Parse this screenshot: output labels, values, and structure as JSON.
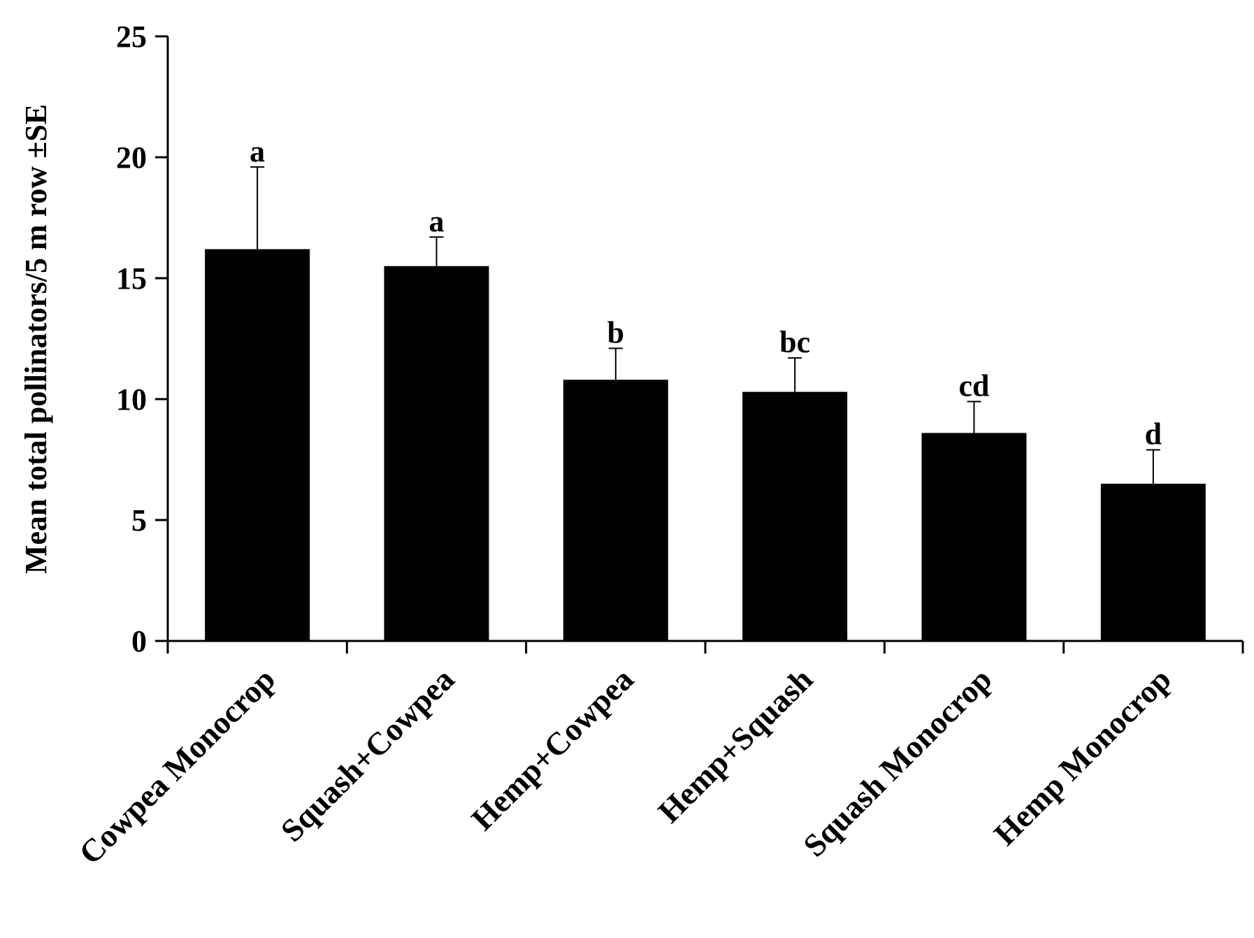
{
  "chart_data": {
    "type": "bar",
    "title": "",
    "xlabel": "",
    "ylabel": "Mean  total pollinators/5 m row ±SE",
    "ylim": [
      0,
      25
    ],
    "yticks": [
      0,
      5,
      10,
      15,
      20,
      25
    ],
    "grid": false,
    "legend": "none",
    "bar_color": "#000000",
    "categories": [
      "Cowpea Monocrop",
      "Squash+Cowpea",
      "Hemp+Cowpea",
      "Hemp+Squash",
      "Squash Monocrop",
      "Hemp Monocrop"
    ],
    "values": [
      16.2,
      15.5,
      10.8,
      10.3,
      8.6,
      6.5
    ],
    "errors": [
      3.4,
      1.2,
      1.3,
      1.4,
      1.3,
      1.4
    ],
    "significance_letters": [
      "a",
      "a",
      "b",
      "bc",
      "cd",
      "d"
    ]
  }
}
